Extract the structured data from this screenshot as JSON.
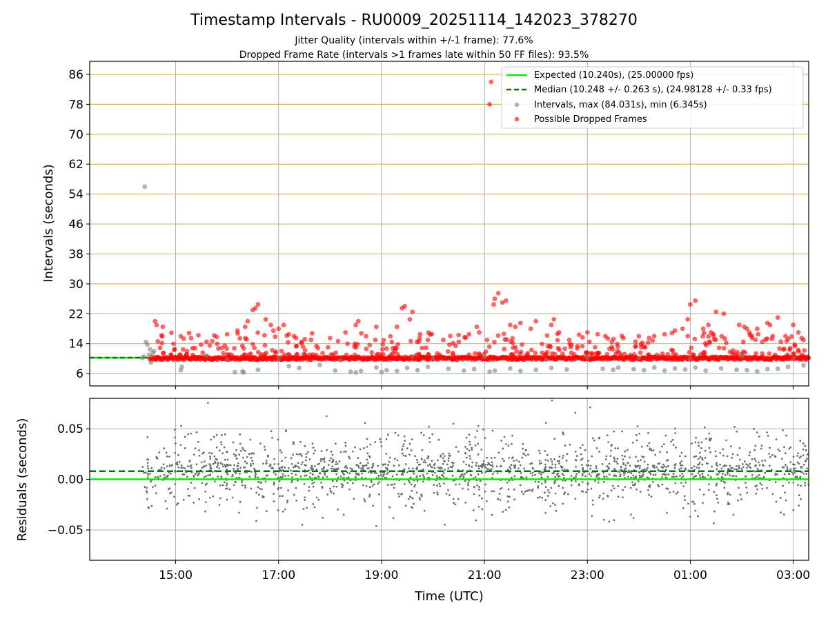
{
  "title": "Timestamp Intervals - RU0009_20251114_142023_378270",
  "subtitle_1": "Jitter Quality (intervals within +/-1 frame): 77.6%",
  "subtitle_2": "Dropped Frame Rate (intervals >1 frames late within 50 FF files): 93.5%",
  "colors": {
    "expected": "#00ee00",
    "median": "#007700",
    "intervals": "#808080",
    "dropped": "#ff0000",
    "hgrid_top": "#d4b96a",
    "grid": "#b0b0b0"
  },
  "chart_data": [
    {
      "type": "scatter",
      "panel": "top",
      "ylabel": "Intervals (seconds)",
      "x_unit": "hours since 14:00 UTC",
      "xlim": [
        -0.67,
        13.3
      ],
      "ylim": [
        2.7,
        89.5
      ],
      "yticks": [
        6,
        14,
        22,
        30,
        38,
        46,
        54,
        62,
        70,
        78,
        86
      ],
      "grid": "on",
      "legend_position": "upper right",
      "legend": [
        {
          "key": "expected",
          "label": "Expected (10.240s), (25.00000 fps)",
          "style": "solid-line"
        },
        {
          "key": "median",
          "label": "Median (10.248 +/- 0.263 s), (24.98128 +/- 0.33 fps)",
          "style": "dashed-line"
        },
        {
          "key": "intervals",
          "label": "Intervals, max (84.031s), min (6.345s)",
          "style": "marker"
        },
        {
          "key": "dropped",
          "label": "Possible Dropped Frames",
          "style": "marker"
        }
      ],
      "expected_value": 10.24,
      "median_value": 10.248,
      "series": [
        {
          "name": "Intervals, max (84.031s), min (6.345s)",
          "points": [
            [
              0.4,
              56.0
            ],
            [
              0.42,
              14.5
            ],
            [
              0.45,
              13.8
            ],
            [
              0.5,
              12.5
            ],
            [
              0.48,
              11.0
            ],
            [
              0.52,
              9.0
            ],
            [
              0.55,
              11.5
            ],
            [
              0.58,
              12.0
            ],
            [
              1.12,
              7.8
            ],
            [
              1.1,
              6.9
            ],
            [
              2.15,
              6.4
            ],
            [
              2.3,
              6.6
            ],
            [
              2.32,
              6.3
            ],
            [
              2.6,
              7.0
            ],
            [
              3.2,
              8.0
            ],
            [
              3.4,
              7.5
            ],
            [
              3.8,
              8.3
            ],
            [
              4.1,
              6.8
            ],
            [
              4.4,
              6.5
            ],
            [
              4.5,
              6.3
            ],
            [
              4.6,
              6.7
            ],
            [
              4.9,
              7.6
            ],
            [
              5.0,
              6.4
            ],
            [
              5.1,
              6.9
            ],
            [
              5.3,
              6.7
            ],
            [
              5.5,
              7.5
            ],
            [
              5.7,
              6.9
            ],
            [
              5.9,
              7.8
            ],
            [
              6.3,
              7.3
            ],
            [
              6.6,
              6.8
            ],
            [
              6.8,
              7.2
            ],
            [
              7.1,
              6.5
            ],
            [
              7.2,
              6.8
            ],
            [
              7.5,
              7.4
            ],
            [
              7.7,
              6.7
            ],
            [
              8.0,
              7.0
            ],
            [
              8.3,
              7.5
            ],
            [
              8.6,
              7.1
            ],
            [
              9.3,
              7.3
            ],
            [
              9.5,
              7.0
            ],
            [
              9.6,
              7.6
            ],
            [
              9.9,
              7.2
            ],
            [
              10.1,
              6.9
            ],
            [
              10.3,
              7.6
            ],
            [
              10.5,
              6.8
            ],
            [
              10.7,
              7.4
            ],
            [
              10.9,
              7.1
            ],
            [
              11.1,
              7.6
            ],
            [
              11.3,
              6.8
            ],
            [
              11.6,
              7.4
            ],
            [
              11.9,
              7.0
            ],
            [
              12.1,
              6.9
            ],
            [
              12.3,
              6.6
            ],
            [
              12.5,
              7.2
            ],
            [
              12.7,
              7.3
            ],
            [
              12.9,
              7.8
            ],
            [
              13.2,
              8.2
            ],
            [
              0.35,
              10.2
            ],
            [
              0.38,
              10.5
            ],
            [
              1.6,
              10.8
            ],
            [
              2.0,
              9.8
            ],
            [
              3.0,
              10.1
            ],
            [
              4.2,
              9.6
            ],
            [
              5.6,
              10.6
            ],
            [
              6.0,
              9.9
            ],
            [
              7.0,
              10.4
            ],
            [
              8.2,
              9.7
            ],
            [
              9.0,
              10.3
            ],
            [
              10.0,
              10.2
            ],
            [
              11.0,
              9.9
            ],
            [
              12.0,
              10.6
            ],
            [
              13.0,
              10.1
            ]
          ]
        },
        {
          "name": "Possible Dropped Frames",
          "points": [
            [
              7.13,
              84.0
            ],
            [
              7.1,
              78.0
            ],
            [
              0.6,
              20.0
            ],
            [
              0.63,
              19.0
            ],
            [
              0.75,
              18.5
            ],
            [
              1.3,
              15.5
            ],
            [
              1.6,
              14.5
            ],
            [
              1.75,
              16.2
            ],
            [
              1.8,
              15.8
            ],
            [
              2.0,
              16.5
            ],
            [
              2.2,
              17.5
            ],
            [
              2.35,
              18.5
            ],
            [
              2.4,
              20.0
            ],
            [
              2.5,
              23.0
            ],
            [
              2.55,
              23.5
            ],
            [
              2.6,
              24.5
            ],
            [
              2.75,
              20.5
            ],
            [
              2.85,
              19.0
            ],
            [
              2.9,
              17.5
            ],
            [
              3.0,
              18.0
            ],
            [
              3.1,
              19.0
            ],
            [
              3.2,
              16.5
            ],
            [
              3.3,
              16.0
            ],
            [
              3.45,
              14.5
            ],
            [
              4.0,
              15.5
            ],
            [
              4.3,
              17.0
            ],
            [
              4.5,
              19.0
            ],
            [
              4.55,
              20.0
            ],
            [
              4.7,
              16.0
            ],
            [
              4.9,
              18.5
            ],
            [
              5.2,
              14.5
            ],
            [
              5.3,
              18.5
            ],
            [
              5.4,
              23.5
            ],
            [
              5.45,
              24.0
            ],
            [
              5.55,
              20.5
            ],
            [
              5.6,
              22.5
            ],
            [
              5.75,
              16.5
            ],
            [
              5.9,
              15.0
            ],
            [
              6.2,
              15.0
            ],
            [
              6.5,
              14.5
            ],
            [
              6.7,
              16.5
            ],
            [
              6.85,
              18.5
            ],
            [
              6.9,
              17.0
            ],
            [
              7.05,
              15.0
            ],
            [
              7.18,
              24.5
            ],
            [
              7.2,
              26.0
            ],
            [
              7.27,
              27.5
            ],
            [
              7.35,
              25.0
            ],
            [
              7.42,
              25.5
            ],
            [
              7.5,
              19.0
            ],
            [
              7.6,
              18.5
            ],
            [
              7.7,
              19.5
            ],
            [
              7.9,
              18.0
            ],
            [
              8.0,
              20.0
            ],
            [
              8.3,
              19.0
            ],
            [
              8.35,
              20.5
            ],
            [
              8.45,
              17.0
            ],
            [
              8.65,
              15.0
            ],
            [
              9.0,
              17.0
            ],
            [
              9.2,
              16.5
            ],
            [
              9.35,
              16.0
            ],
            [
              9.7,
              15.5
            ],
            [
              10.0,
              16.0
            ],
            [
              10.2,
              15.5
            ],
            [
              10.5,
              16.5
            ],
            [
              10.7,
              17.5
            ],
            [
              10.85,
              18.0
            ],
            [
              10.95,
              20.5
            ],
            [
              11.0,
              24.5
            ],
            [
              11.1,
              25.5
            ],
            [
              11.25,
              18.0
            ],
            [
              11.35,
              19.0
            ],
            [
              11.4,
              17.0
            ],
            [
              11.65,
              22.0
            ],
            [
              11.95,
              19.0
            ],
            [
              12.05,
              18.5
            ],
            [
              12.3,
              18.0
            ],
            [
              12.5,
              19.5
            ],
            [
              12.7,
              21.0
            ],
            [
              12.85,
              16.0
            ],
            [
              13.0,
              19.0
            ],
            [
              13.1,
              17.0
            ],
            [
              13.2,
              15.0
            ],
            [
              11.5,
              22.5
            ],
            [
              12.1,
              18.0
            ],
            [
              12.15,
              17.0
            ],
            [
              12.2,
              15.5
            ],
            [
              12.4,
              14.5
            ],
            [
              12.55,
              19.0
            ],
            [
              12.6,
              16.0
            ]
          ]
        }
      ]
    },
    {
      "type": "scatter",
      "panel": "bottom",
      "xlabel": "Time (UTC)",
      "ylabel": "Residuals (seconds)",
      "x_unit": "hours since 14:00 UTC",
      "xlim": [
        -0.67,
        13.3
      ],
      "ylim": [
        -0.08,
        0.08
      ],
      "yticks": [
        -0.05,
        0.0,
        0.05
      ],
      "ytick_labels": [
        "−0.05",
        "0.00",
        "0.05"
      ],
      "xticks": [
        1,
        3,
        5,
        7,
        9,
        11,
        13
      ],
      "xtick_labels": [
        "15:00",
        "17:00",
        "19:00",
        "21:00",
        "23:00",
        "01:00",
        "03:00"
      ],
      "grid": "on",
      "zero_line": 0.0,
      "median_residual": 0.008,
      "residual_center": 0.008,
      "residual_spread": 0.02,
      "residual_count": 1800
    }
  ]
}
